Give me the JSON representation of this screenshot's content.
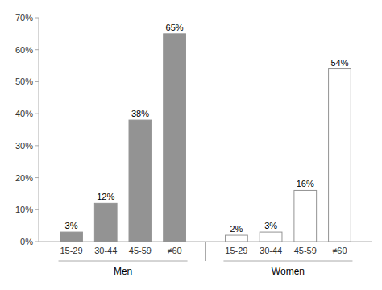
{
  "chart_data": {
    "type": "bar",
    "categories": [
      "15-29",
      "30-44",
      "45-59",
      "≠60"
    ],
    "series": [
      {
        "name": "Men",
        "color": "#939393",
        "values": [
          3,
          12,
          38,
          65
        ],
        "value_labels": [
          "3%",
          "12%",
          "38%",
          "65%"
        ]
      },
      {
        "name": "Women",
        "color": "#ffffff",
        "values": [
          2,
          3,
          16,
          54
        ],
        "value_labels": [
          "2%",
          "3%",
          "16%",
          "54%"
        ]
      }
    ],
    "ylim": [
      0,
      70
    ],
    "yticks": [
      {
        "value": 0,
        "label": "0%"
      },
      {
        "value": 10,
        "label": "10%"
      },
      {
        "value": 20,
        "label": "20%"
      },
      {
        "value": 30,
        "label": "30%"
      },
      {
        "value": 40,
        "label": "40%"
      },
      {
        "value": 50,
        "label": "50%"
      },
      {
        "value": 60,
        "label": "60%"
      },
      {
        "value": 70,
        "label": "70%"
      }
    ],
    "grid": false,
    "data_labels": true
  }
}
